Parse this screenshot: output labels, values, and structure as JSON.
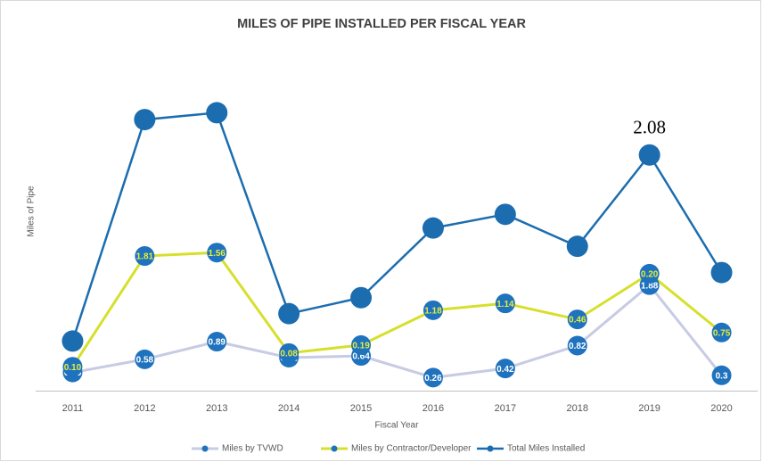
{
  "chart_data": {
    "type": "line",
    "stacked": true,
    "title": "MILES OF PIPE INSTALLED PER FISCAL YEAR",
    "xlabel": "Fiscal Year",
    "ylabel": "Miles of Pipe",
    "categories": [
      "2011",
      "2012",
      "2013",
      "2014",
      "2015",
      "2016",
      "2017",
      "2018",
      "2019",
      "2020"
    ],
    "ylim": [
      0,
      6
    ],
    "series": [
      {
        "name": "Miles by TVWD",
        "color": "#c7cbe3",
        "marker_color": "#1f72bd",
        "label_color": "#ffffff",
        "marker_radius": 11,
        "line_width": 3,
        "values": [
          0.35,
          0.58,
          0.89,
          0.61,
          0.64,
          0.26,
          0.42,
          0.82,
          1.88,
          0.3
        ],
        "show_labels": true
      },
      {
        "name": "Miles by Contractor/Developer",
        "color": "#d6e02c",
        "marker_color": "#1f72bd",
        "label_color": "#e4ee3c",
        "marker_radius": 11,
        "line_width": 3,
        "values": [
          0.1,
          1.81,
          1.56,
          0.08,
          0.19,
          1.18,
          1.14,
          0.46,
          0.2,
          0.75
        ],
        "value_labels": [
          "0.10",
          "1.81",
          "1.56",
          "0.08",
          "0.19",
          "1.18",
          "1.14",
          "0.46",
          "0.20",
          "0.75"
        ],
        "show_labels": true
      },
      {
        "name": "Total Miles Installed",
        "color": "#1c6daf",
        "marker_color": "#1c6daf",
        "marker_radius": 12,
        "line_width": 2.5,
        "values": [
          0.45,
          2.39,
          2.45,
          0.69,
          0.83,
          1.44,
          1.56,
          1.28,
          2.08,
          1.05
        ],
        "label_indices": [
          8
        ]
      }
    ]
  }
}
